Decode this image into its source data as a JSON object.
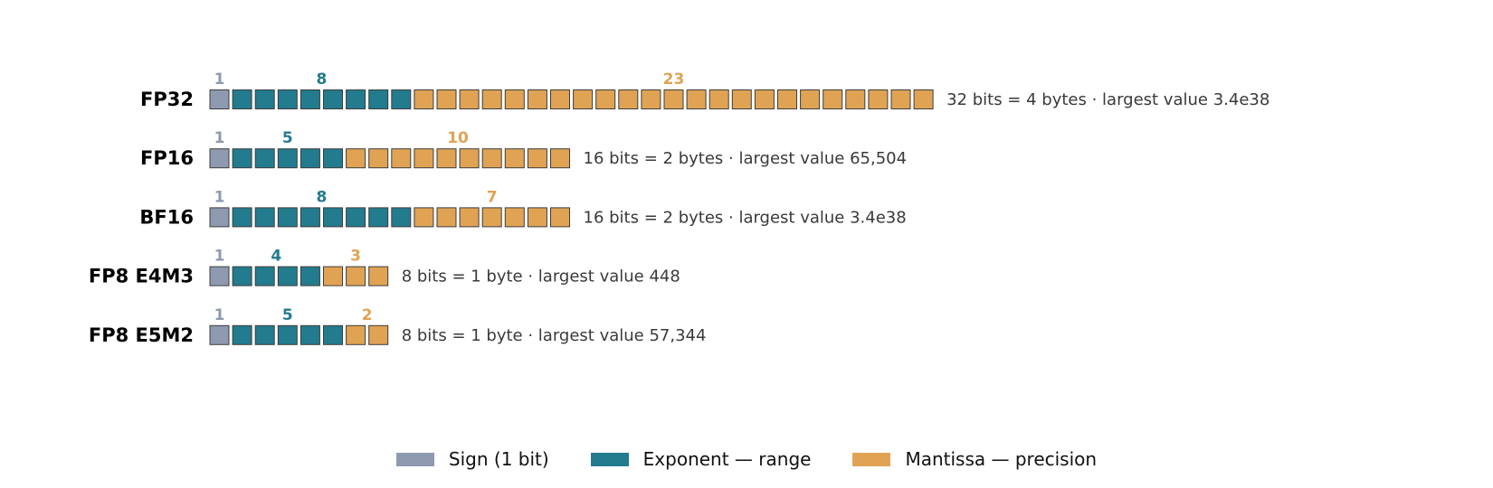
{
  "colors": {
    "sign": "#8e9ab0",
    "exponent": "#237b8e",
    "mantissa": "#e0a354",
    "border": "#3d3d3d"
  },
  "formats": [
    {
      "name": "FP32",
      "sign_bits": 1,
      "exponent_bits": 8,
      "mantissa_bits": 23,
      "description": "32 bits = 4 bytes  ·  largest value 3.4e38"
    },
    {
      "name": "FP16",
      "sign_bits": 1,
      "exponent_bits": 5,
      "mantissa_bits": 10,
      "description": "16 bits = 2 bytes  ·  largest value 65,504"
    },
    {
      "name": "BF16",
      "sign_bits": 1,
      "exponent_bits": 8,
      "mantissa_bits": 7,
      "description": "16 bits = 2 bytes  ·  largest value 3.4e38"
    },
    {
      "name": "FP8 E4M3",
      "sign_bits": 1,
      "exponent_bits": 4,
      "mantissa_bits": 3,
      "description": "8 bits = 1 byte  ·  largest value 448"
    },
    {
      "name": "FP8 E5M2",
      "sign_bits": 1,
      "exponent_bits": 5,
      "mantissa_bits": 2,
      "description": "8 bits = 1 byte  ·  largest value 57,344"
    }
  ],
  "legend": {
    "sign_label": "Sign (1 bit)",
    "exponent_label": "Exponent — range",
    "mantissa_label": "Mantissa — precision"
  }
}
